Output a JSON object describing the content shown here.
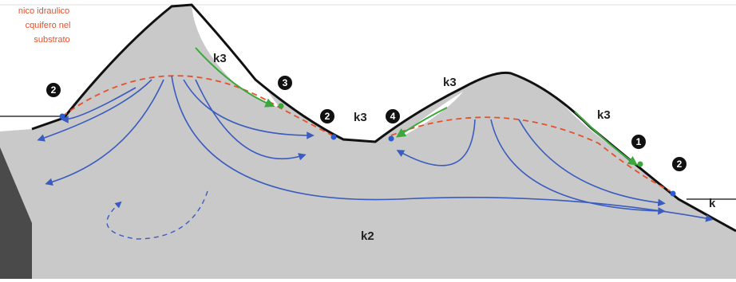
{
  "annotation": {
    "lines": [
      "nico idraulico",
      "cquifero nel",
      "substrato"
    ]
  },
  "zones": [
    {
      "label": "k3"
    },
    {
      "label": "k3"
    },
    {
      "label": "k3"
    },
    {
      "label": "k3"
    },
    {
      "label": "k2"
    },
    {
      "label": "k"
    }
  ],
  "points": [
    {
      "label": "2"
    },
    {
      "label": "3"
    },
    {
      "label": "2"
    },
    {
      "label": "4"
    },
    {
      "label": "1"
    },
    {
      "label": "2"
    }
  ]
}
